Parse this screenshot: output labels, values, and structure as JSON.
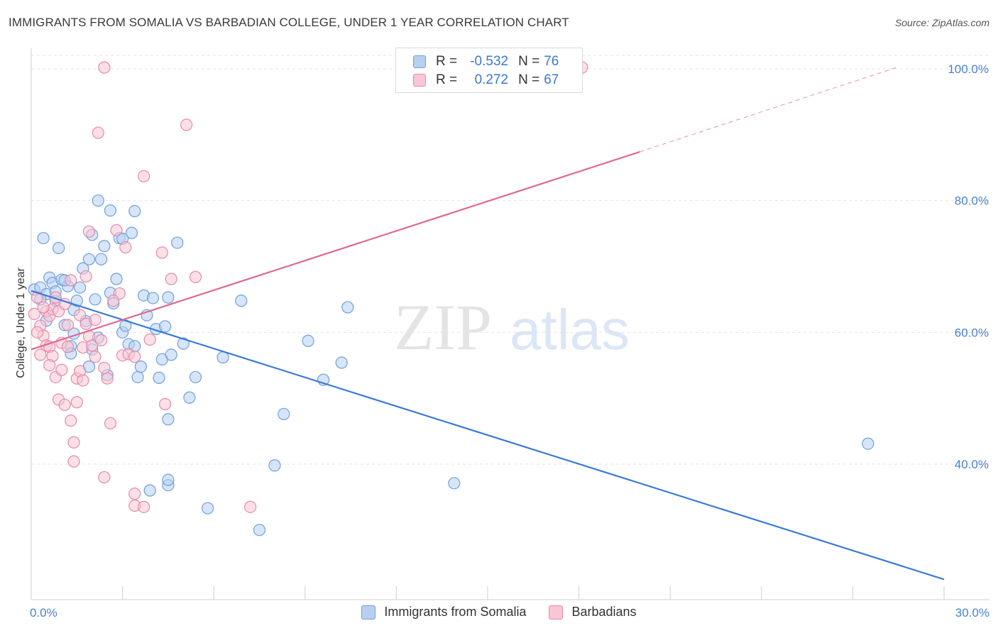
{
  "title": "IMMIGRANTS FROM SOMALIA VS BARBADIAN COLLEGE, UNDER 1 YEAR CORRELATION CHART",
  "source": "Source: ZipAtlas.com",
  "watermark": {
    "zip": "ZIP",
    "atlas": "atlas"
  },
  "legend": {
    "rows": [
      {
        "r_label": "R =",
        "r_value": "-0.532",
        "n_label": "N =",
        "n_value": "76",
        "color": "#a9c6ee",
        "border": "#6f9fdc"
      },
      {
        "r_label": "R =",
        "r_value": "0.272",
        "n_label": "N =",
        "n_value": "67",
        "color": "#f7bccd",
        "border": "#e58aa5"
      }
    ]
  },
  "bottom_legend": [
    "Immigrants from Somalia",
    "Barbadians"
  ],
  "chart_data": {
    "type": "scatter",
    "ylabel": "College, Under 1 year",
    "xlabel": "",
    "xlim": [
      0,
      30
    ],
    "ylim": [
      20,
      104
    ],
    "x_tick_labels": [
      "0.0%",
      "30.0%"
    ],
    "y_ticks": [
      40,
      60,
      80,
      100
    ],
    "y_tick_labels": [
      "40.0%",
      "60.0%",
      "80.0%",
      "100.0%"
    ],
    "grid": true,
    "series": [
      {
        "name": "Immigrants from Somalia",
        "color": "#6f9fdc",
        "fill": "#b7d0f2",
        "trend": {
          "x0": 0,
          "y0": 66.3,
          "x1": 30,
          "y1": 22.5,
          "dashed_after": null
        },
        "points": [
          [
            0.1,
            66.5
          ],
          [
            0.3,
            66.8
          ],
          [
            0.4,
            74.3
          ],
          [
            0.5,
            65.8
          ],
          [
            0.6,
            68.3
          ],
          [
            0.7,
            67.5
          ],
          [
            0.8,
            64.8
          ],
          [
            0.8,
            66.2
          ],
          [
            0.9,
            72.8
          ],
          [
            1.0,
            68.0
          ],
          [
            1.1,
            61.1
          ],
          [
            1.2,
            67.0
          ],
          [
            1.3,
            57.9
          ],
          [
            1.3,
            56.8
          ],
          [
            1.4,
            63.4
          ],
          [
            1.5,
            64.8
          ],
          [
            1.6,
            66.8
          ],
          [
            1.7,
            69.7
          ],
          [
            1.8,
            61.7
          ],
          [
            1.9,
            71.1
          ],
          [
            1.9,
            54.8
          ],
          [
            2.0,
            74.8
          ],
          [
            2.1,
            65.0
          ],
          [
            2.2,
            59.2
          ],
          [
            2.3,
            71.1
          ],
          [
            2.4,
            73.1
          ],
          [
            2.5,
            53.5
          ],
          [
            2.6,
            66.0
          ],
          [
            2.7,
            64.4
          ],
          [
            2.8,
            68.1
          ],
          [
            2.9,
            74.3
          ],
          [
            3.0,
            60.0
          ],
          [
            3.1,
            61.0
          ],
          [
            3.2,
            58.2
          ],
          [
            3.3,
            75.1
          ],
          [
            3.4,
            78.4
          ],
          [
            3.5,
            53.2
          ],
          [
            3.6,
            54.8
          ],
          [
            3.7,
            65.6
          ],
          [
            3.8,
            62.6
          ],
          [
            3.9,
            36.0
          ],
          [
            4.0,
            65.2
          ],
          [
            4.1,
            60.5
          ],
          [
            4.2,
            53.1
          ],
          [
            4.3,
            55.9
          ],
          [
            4.4,
            60.9
          ],
          [
            4.5,
            65.3
          ],
          [
            4.5,
            46.8
          ],
          [
            4.6,
            56.6
          ],
          [
            4.8,
            73.6
          ],
          [
            4.5,
            36.8
          ],
          [
            4.5,
            37.6
          ],
          [
            5.0,
            58.3
          ],
          [
            5.2,
            50.1
          ],
          [
            5.4,
            53.2
          ],
          [
            5.8,
            33.3
          ],
          [
            6.3,
            56.2
          ],
          [
            6.9,
            64.8
          ],
          [
            7.5,
            30.0
          ],
          [
            8.0,
            39.8
          ],
          [
            8.3,
            47.6
          ],
          [
            9.1,
            58.7
          ],
          [
            9.6,
            52.8
          ],
          [
            10.2,
            55.4
          ],
          [
            10.4,
            63.8
          ],
          [
            13.9,
            37.1
          ],
          [
            27.5,
            43.1
          ],
          [
            2.6,
            78.5
          ],
          [
            3.0,
            74.2
          ],
          [
            1.1,
            67.9
          ],
          [
            0.3,
            65.0
          ],
          [
            0.5,
            61.8
          ],
          [
            1.4,
            59.8
          ],
          [
            2.0,
            57.4
          ],
          [
            3.4,
            57.9
          ],
          [
            2.2,
            80.0
          ]
        ]
      },
      {
        "name": "Barbadians",
        "color": "#e58aa5",
        "fill": "#f8c6d5",
        "trend": {
          "x0": 0,
          "y0": 57.4,
          "x1": 20.0,
          "y1": 87.4,
          "dashed_to_x": 28.5,
          "dashed_to_y": 100.3
        },
        "points": [
          [
            0.1,
            62.8
          ],
          [
            0.2,
            65.3
          ],
          [
            0.3,
            61.0
          ],
          [
            0.3,
            56.6
          ],
          [
            0.4,
            59.5
          ],
          [
            0.5,
            63.2
          ],
          [
            0.5,
            58.0
          ],
          [
            0.6,
            62.5
          ],
          [
            0.6,
            57.8
          ],
          [
            0.7,
            56.4
          ],
          [
            0.7,
            63.5
          ],
          [
            0.8,
            53.2
          ],
          [
            0.8,
            65.3
          ],
          [
            0.9,
            49.8
          ],
          [
            0.9,
            63.2
          ],
          [
            1.0,
            54.3
          ],
          [
            1.0,
            58.4
          ],
          [
            1.1,
            49.0
          ],
          [
            1.2,
            61.1
          ],
          [
            1.2,
            57.8
          ],
          [
            1.3,
            46.6
          ],
          [
            1.3,
            67.9
          ],
          [
            1.4,
            40.4
          ],
          [
            1.5,
            53.0
          ],
          [
            1.5,
            49.4
          ],
          [
            1.6,
            54.1
          ],
          [
            1.6,
            62.6
          ],
          [
            1.7,
            57.7
          ],
          [
            1.8,
            61.3
          ],
          [
            1.8,
            68.5
          ],
          [
            1.9,
            75.3
          ],
          [
            1.9,
            59.4
          ],
          [
            2.0,
            58.0
          ],
          [
            2.1,
            56.3
          ],
          [
            2.1,
            61.9
          ],
          [
            2.2,
            90.3
          ],
          [
            2.3,
            58.8
          ],
          [
            2.4,
            54.6
          ],
          [
            2.5,
            53.0
          ],
          [
            2.6,
            46.2
          ],
          [
            2.8,
            75.5
          ],
          [
            2.9,
            65.9
          ],
          [
            3.0,
            56.5
          ],
          [
            3.1,
            72.9
          ],
          [
            3.2,
            56.7
          ],
          [
            3.4,
            56.3
          ],
          [
            3.4,
            35.5
          ],
          [
            3.4,
            33.7
          ],
          [
            3.7,
            33.5
          ],
          [
            3.7,
            83.7
          ],
          [
            3.9,
            58.9
          ],
          [
            4.3,
            72.1
          ],
          [
            4.4,
            49.1
          ],
          [
            4.6,
            68.1
          ],
          [
            5.1,
            91.5
          ],
          [
            5.4,
            68.4
          ],
          [
            7.2,
            33.5
          ],
          [
            2.4,
            38.0
          ],
          [
            2.4,
            100.2
          ],
          [
            18.1,
            100.2
          ],
          [
            0.2,
            60.0
          ],
          [
            0.4,
            63.8
          ],
          [
            1.1,
            64.3
          ],
          [
            1.7,
            52.7
          ],
          [
            2.7,
            64.8
          ],
          [
            1.4,
            43.3
          ],
          [
            0.6,
            55.0
          ]
        ]
      }
    ]
  }
}
